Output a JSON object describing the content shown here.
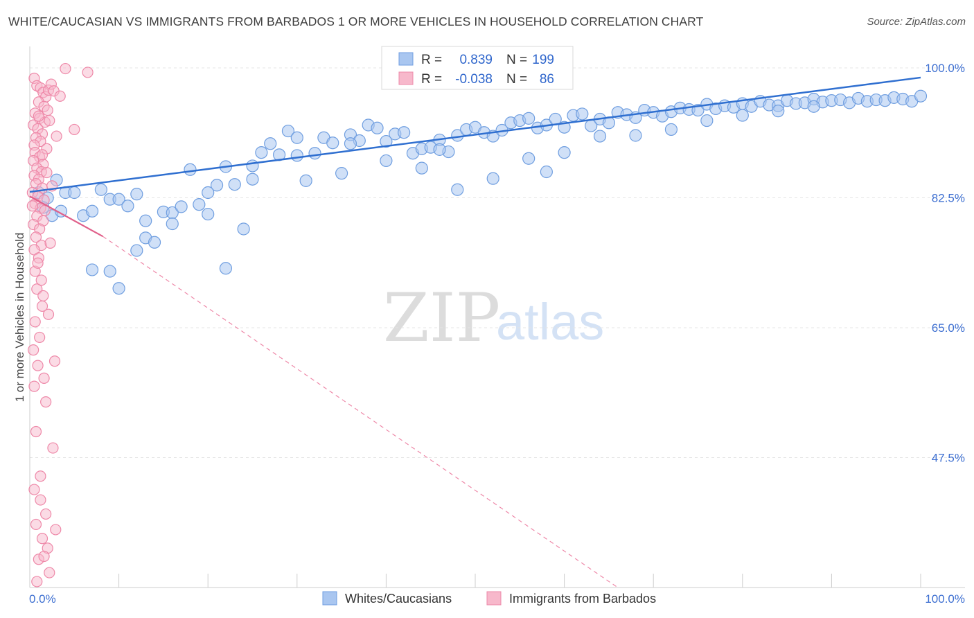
{
  "header": {
    "title": "WHITE/CAUCASIAN VS IMMIGRANTS FROM BARBADOS 1 OR MORE VEHICLES IN HOUSEHOLD CORRELATION CHART",
    "source": "Source: ZipAtlas.com"
  },
  "watermark": {
    "part1": "ZIP",
    "part2": "atlas"
  },
  "colors": {
    "blue_fill": "#a9c6f0",
    "blue_stroke": "#6f9ee0",
    "blue_line": "#2f6fd0",
    "pink_fill": "#f7b8cb",
    "pink_stroke": "#ee88a8",
    "pink_line": "#e0608a",
    "grid": "#e4e4e4",
    "tick_text": "#3d6fd1"
  },
  "legend": {
    "rows": [
      {
        "r_label": "R =",
        "r_value": "0.839",
        "n_label": "N =",
        "n_value": "199"
      },
      {
        "r_label": "R =",
        "r_value": "-0.038",
        "n_label": "N =",
        "n_value": "86"
      }
    ]
  },
  "chart_data": {
    "type": "scatter",
    "title": "WHITE/CAUCASIAN VS IMMIGRANTS FROM BARBADOS 1 OR MORE VEHICLES IN HOUSEHOLD CORRELATION CHART",
    "xlabel": "",
    "ylabel": "1 or more Vehicles in Household",
    "xlim": [
      0,
      100
    ],
    "ylim": [
      30,
      100
    ],
    "x_tick_labels": [
      "0.0%",
      "100.0%"
    ],
    "y_tick_labels": [
      "100.0%",
      "82.5%",
      "65.0%",
      "47.5%"
    ],
    "y_ticks": [
      100,
      82.5,
      65,
      47.5
    ],
    "grid": true,
    "series": [
      {
        "name": "Whites/Caucasians",
        "legend_label": "Whites/Caucasians",
        "R": 0.839,
        "N": 199,
        "trend": {
          "x": [
            0,
            100
          ],
          "y": [
            83.3,
            98.7
          ],
          "style": "solid"
        },
        "points": [
          [
            1,
            83.2
          ],
          [
            2,
            82.5
          ],
          [
            1.5,
            81.2
          ],
          [
            3,
            84.9
          ],
          [
            4,
            83.2
          ],
          [
            5,
            83.2
          ],
          [
            2.5,
            80.1
          ],
          [
            3.5,
            80.7
          ],
          [
            6,
            80.1
          ],
          [
            7,
            80.7
          ],
          [
            8,
            83.6
          ],
          [
            9,
            82.3
          ],
          [
            10,
            82.3
          ],
          [
            11,
            81.4
          ],
          [
            12,
            83.0
          ],
          [
            13,
            77.1
          ],
          [
            13,
            79.4
          ],
          [
            15,
            80.6
          ],
          [
            16,
            80.5
          ],
          [
            17,
            81.3
          ],
          [
            18,
            86.3
          ],
          [
            19,
            81.6
          ],
          [
            20,
            80.3
          ],
          [
            21,
            84.2
          ],
          [
            22,
            86.7
          ],
          [
            23,
            84.3
          ],
          [
            24,
            78.3
          ],
          [
            25,
            86.8
          ],
          [
            26,
            88.6
          ],
          [
            27,
            89.8
          ],
          [
            28,
            88.3
          ],
          [
            29,
            91.5
          ],
          [
            30,
            90.6
          ],
          [
            31,
            84.8
          ],
          [
            32,
            88.5
          ],
          [
            33,
            90.6
          ],
          [
            34,
            89.9
          ],
          [
            35,
            85.8
          ],
          [
            36,
            91.0
          ],
          [
            37,
            90.2
          ],
          [
            38,
            92.3
          ],
          [
            39,
            91.9
          ],
          [
            40,
            90.1
          ],
          [
            41,
            91.1
          ],
          [
            42,
            91.3
          ],
          [
            43,
            88.5
          ],
          [
            44,
            89.1
          ],
          [
            45,
            89.3
          ],
          [
            46,
            90.3
          ],
          [
            47,
            88.7
          ],
          [
            48,
            90.9
          ],
          [
            49,
            91.7
          ],
          [
            50,
            92.0
          ],
          [
            51,
            91.3
          ],
          [
            52,
            90.8
          ],
          [
            53,
            91.6
          ],
          [
            54,
            92.6
          ],
          [
            55,
            92.9
          ],
          [
            56,
            93.2
          ],
          [
            57,
            91.9
          ],
          [
            58,
            92.3
          ],
          [
            59,
            93.1
          ],
          [
            60,
            92.0
          ],
          [
            61,
            93.6
          ],
          [
            62,
            93.8
          ],
          [
            63,
            92.2
          ],
          [
            64,
            93.1
          ],
          [
            65,
            92.6
          ],
          [
            66,
            94.0
          ],
          [
            67,
            93.7
          ],
          [
            68,
            93.3
          ],
          [
            69,
            94.3
          ],
          [
            70,
            94.0
          ],
          [
            71,
            93.5
          ],
          [
            72,
            94.1
          ],
          [
            73,
            94.6
          ],
          [
            74,
            94.4
          ],
          [
            75,
            94.3
          ],
          [
            76,
            95.1
          ],
          [
            77,
            94.5
          ],
          [
            78,
            94.9
          ],
          [
            79,
            94.7
          ],
          [
            80,
            95.2
          ],
          [
            81,
            94.8
          ],
          [
            82,
            95.5
          ],
          [
            83,
            95.0
          ],
          [
            84,
            94.9
          ],
          [
            85,
            95.6
          ],
          [
            86,
            95.2
          ],
          [
            87,
            95.3
          ],
          [
            88,
            95.8
          ],
          [
            89,
            95.4
          ],
          [
            90,
            95.6
          ],
          [
            91,
            95.7
          ],
          [
            92,
            95.3
          ],
          [
            93,
            95.9
          ],
          [
            94,
            95.5
          ],
          [
            95,
            95.7
          ],
          [
            96,
            95.6
          ],
          [
            97,
            96.0
          ],
          [
            98,
            95.8
          ],
          [
            99,
            95.5
          ],
          [
            100,
            96.2
          ],
          [
            58,
            86.0
          ],
          [
            46,
            89.0
          ],
          [
            40,
            87.5
          ],
          [
            36,
            89.8
          ],
          [
            30,
            88.2
          ],
          [
            25,
            85.0
          ],
          [
            20,
            83.2
          ],
          [
            16,
            79.0
          ],
          [
            14,
            76.5
          ],
          [
            12,
            75.4
          ],
          [
            10,
            70.3
          ],
          [
            9,
            72.6
          ],
          [
            7,
            72.8
          ],
          [
            22,
            73.0
          ],
          [
            44,
            86.5
          ],
          [
            48,
            83.6
          ],
          [
            52,
            85.1
          ],
          [
            56,
            87.8
          ],
          [
            60,
            88.6
          ],
          [
            64,
            90.8
          ],
          [
            68,
            90.9
          ],
          [
            72,
            91.7
          ],
          [
            76,
            92.9
          ],
          [
            80,
            93.6
          ],
          [
            84,
            94.2
          ],
          [
            88,
            94.8
          ]
        ]
      },
      {
        "name": "Immigrants from Barbados",
        "legend_label": "Immigrants from Barbados",
        "R": -0.038,
        "N": 86,
        "trend": {
          "x": [
            0,
            8.2
          ],
          "y": [
            82.7,
            77.3
          ],
          "style": "solid"
        },
        "trend_extended": {
          "x": [
            8.2,
            66
          ],
          "y": [
            77.3,
            30
          ],
          "style": "dashed"
        },
        "points": [
          [
            0.5,
            98.6
          ],
          [
            0.8,
            97.6
          ],
          [
            1.2,
            97.3
          ],
          [
            1.5,
            96.7
          ],
          [
            1.8,
            96.1
          ],
          [
            2.1,
            97.0
          ],
          [
            2.4,
            97.8
          ],
          [
            2.7,
            96.9
          ],
          [
            1.0,
            95.4
          ],
          [
            1.6,
            94.8
          ],
          [
            2.0,
            94.3
          ],
          [
            0.6,
            93.9
          ],
          [
            1.1,
            93.2
          ],
          [
            1.7,
            92.7
          ],
          [
            0.4,
            92.3
          ],
          [
            0.9,
            91.8
          ],
          [
            1.4,
            91.1
          ],
          [
            0.7,
            90.6
          ],
          [
            1.2,
            90.1
          ],
          [
            0.5,
            89.6
          ],
          [
            1.9,
            89.1
          ],
          [
            0.6,
            88.6
          ],
          [
            1.1,
            88.0
          ],
          [
            0.4,
            87.5
          ],
          [
            1.5,
            87.0
          ],
          [
            0.8,
            86.5
          ],
          [
            1.3,
            86.0
          ],
          [
            0.5,
            85.5
          ],
          [
            1.0,
            85.0
          ],
          [
            0.7,
            84.4
          ],
          [
            1.4,
            83.8
          ],
          [
            0.3,
            83.2
          ],
          [
            0.9,
            82.7
          ],
          [
            1.6,
            82.2
          ],
          [
            0.6,
            81.7
          ],
          [
            1.2,
            81.1
          ],
          [
            0.8,
            80.0
          ],
          [
            1.5,
            79.4
          ],
          [
            0.4,
            78.9
          ],
          [
            1.1,
            78.3
          ],
          [
            0.7,
            77.2
          ],
          [
            1.3,
            76.1
          ],
          [
            0.5,
            75.5
          ],
          [
            1.0,
            74.4
          ],
          [
            0.8,
            70.2
          ],
          [
            1.4,
            67.9
          ],
          [
            0.6,
            65.8
          ],
          [
            1.1,
            63.7
          ],
          [
            2.8,
            60.5
          ],
          [
            0.9,
            59.9
          ],
          [
            1.6,
            58.2
          ],
          [
            0.5,
            57.1
          ],
          [
            1.2,
            41.8
          ],
          [
            1.8,
            39.9
          ],
          [
            0.7,
            38.5
          ],
          [
            1.4,
            36.6
          ],
          [
            2.0,
            35.3
          ],
          [
            1.0,
            33.8
          ],
          [
            0.6,
            72.6
          ],
          [
            1.3,
            71.4
          ],
          [
            3.0,
            90.8
          ],
          [
            5.0,
            91.7
          ],
          [
            2.2,
            92.9
          ],
          [
            6.5,
            99.4
          ],
          [
            4.0,
            99.9
          ],
          [
            3.4,
            96.2
          ],
          [
            1.9,
            85.9
          ],
          [
            2.5,
            84.1
          ],
          [
            0.3,
            81.4
          ],
          [
            1.7,
            80.8
          ],
          [
            2.3,
            76.4
          ],
          [
            0.9,
            73.7
          ],
          [
            1.5,
            69.3
          ],
          [
            2.1,
            66.8
          ],
          [
            0.4,
            62.0
          ],
          [
            1.8,
            55.0
          ],
          [
            0.7,
            51.0
          ],
          [
            2.6,
            48.8
          ],
          [
            1.2,
            45.0
          ],
          [
            0.5,
            43.2
          ],
          [
            2.9,
            37.8
          ],
          [
            1.6,
            34.2
          ],
          [
            2.2,
            32.0
          ],
          [
            0.8,
            30.8
          ],
          [
            1.0,
            93.5
          ],
          [
            1.4,
            88.3
          ]
        ]
      }
    ]
  },
  "bottom_legend": {
    "items": [
      "Whites/Caucasians",
      "Immigrants from Barbados"
    ]
  }
}
